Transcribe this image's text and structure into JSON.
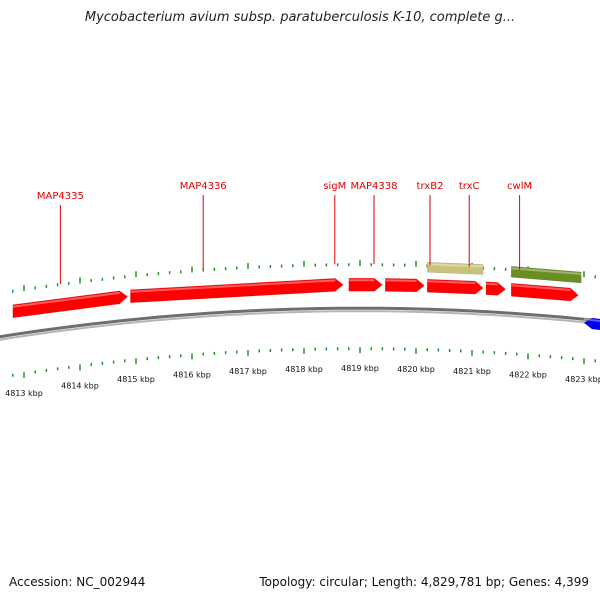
{
  "title": "Mycobacterium avium subsp. paratuberculosis K-10, complete g...",
  "footer": {
    "accession": "Accession: NC_002944",
    "topology": "Topology: circular; Length: 4,829,781 bp; Genes: 4,399"
  },
  "colors": {
    "forward_gene": "#ff0000",
    "reverse_gene": "#0000ee",
    "trna_like": "#c9c27a",
    "regulatory": "#6b8e23",
    "ticks": "#1a8a1a",
    "backbone": "#8a8a8a",
    "label": "#e00000"
  },
  "axis": {
    "unit": "kbp",
    "labels": [
      "4813 kbp",
      "4814 kbp",
      "4815 kbp",
      "4816 kbp",
      "4817 kbp",
      "4818 kbp",
      "4819 kbp",
      "4820 kbp",
      "4821 kbp",
      "4822 kbp",
      "4823 kbp"
    ],
    "positions_kbp": [
      4813,
      4814,
      4815,
      4816,
      4817,
      4818,
      4819,
      4820,
      4821,
      4822,
      4823
    ]
  },
  "genes": [
    {
      "name": "",
      "start_kbp": 4812.8,
      "end_kbp": 4814.85,
      "strand": "+",
      "type": "cds"
    },
    {
      "name": "",
      "start_kbp": 4814.9,
      "end_kbp": 4818.7,
      "strand": "+",
      "type": "cds"
    },
    {
      "name": "",
      "start_kbp": 4818.8,
      "end_kbp": 4819.4,
      "strand": "+",
      "type": "cds"
    },
    {
      "name": "",
      "start_kbp": 4819.45,
      "end_kbp": 4820.15,
      "strand": "+",
      "type": "cds"
    },
    {
      "name": "",
      "start_kbp": 4820.2,
      "end_kbp": 4821.2,
      "strand": "+",
      "type": "cds"
    },
    {
      "name": "",
      "start_kbp": 4821.25,
      "end_kbp": 4821.6,
      "strand": "+",
      "type": "cds"
    },
    {
      "name": "",
      "start_kbp": 4821.7,
      "end_kbp": 4822.9,
      "strand": "+",
      "type": "cds"
    },
    {
      "name": "",
      "start_kbp": 4823.0,
      "end_kbp": 4824.0,
      "strand": "-",
      "type": "cds"
    },
    {
      "name": "",
      "start_kbp": 4820.2,
      "end_kbp": 4821.2,
      "strand": "+",
      "type": "trna_like"
    },
    {
      "name": "",
      "start_kbp": 4821.7,
      "end_kbp": 4822.95,
      "strand": "+",
      "type": "regulatory"
    }
  ],
  "gene_labels": [
    {
      "text": "MAP4335",
      "kbp": 4813.65
    },
    {
      "text": "MAP4336",
      "kbp": 4816.2
    },
    {
      "text": "sigM",
      "kbp": 4818.55
    },
    {
      "text": "MAP4338",
      "kbp": 4819.25
    },
    {
      "text": "trxB2",
      "kbp": 4820.25
    },
    {
      "text": "trxC",
      "kbp": 4820.95
    },
    {
      "text": "cwlM",
      "kbp": 4821.85
    }
  ]
}
